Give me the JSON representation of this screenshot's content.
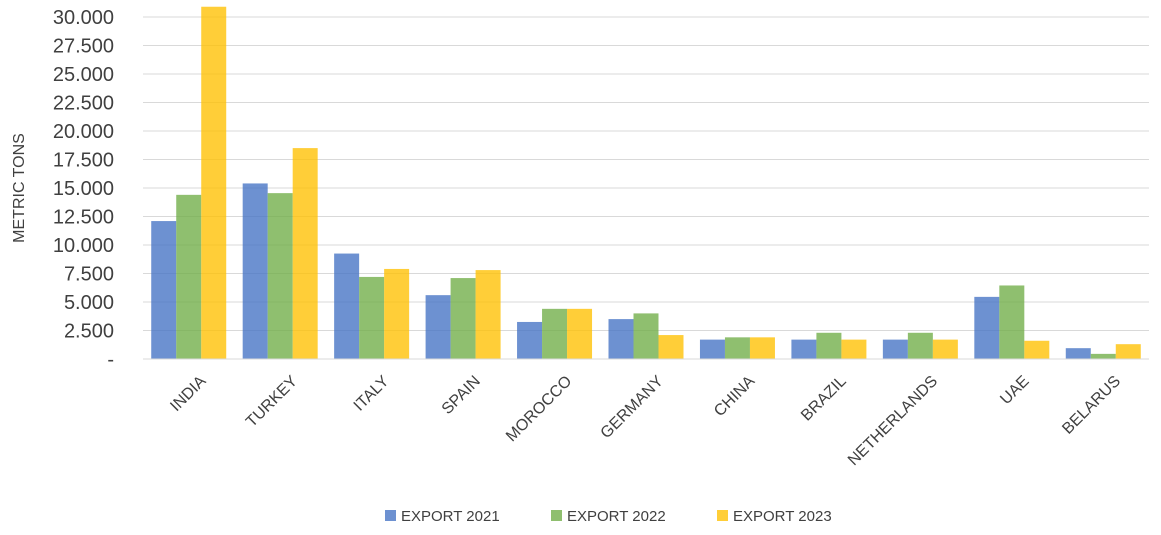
{
  "chart_data": {
    "type": "bar",
    "title": "",
    "xlabel": "",
    "ylabel": "METRIC TONS",
    "ylim": [
      0,
      30000
    ],
    "yticks": [
      0,
      2500,
      5000,
      7500,
      10000,
      12500,
      15000,
      17500,
      20000,
      22500,
      25000,
      27500,
      30000
    ],
    "ytick_labels": [
      "-",
      "2.500",
      "5.000",
      "7.500",
      "10.000",
      "12.500",
      "15.000",
      "17.500",
      "20.000",
      "22.500",
      "25.000",
      "27.500",
      "30.000"
    ],
    "grid": true,
    "legend_position": "bottom",
    "categories": [
      "INDIA",
      "TURKEY",
      "ITALY",
      "SPAIN",
      "MOROCCO",
      "GERMANY",
      "CHINA",
      "BRAZIL",
      "NETHERLANDS",
      "UAE",
      "BELARUS"
    ],
    "series": [
      {
        "name": "EXPORT 2021",
        "color": "#4472C4",
        "values": [
          12100,
          15400,
          9250,
          5600,
          3250,
          3500,
          1700,
          1700,
          1700,
          5450,
          950
        ]
      },
      {
        "name": "EXPORT 2022",
        "color": "#70AD47",
        "values": [
          14400,
          14550,
          7200,
          7100,
          4400,
          4000,
          1900,
          2300,
          2300,
          6450,
          450
        ]
      },
      {
        "name": "EXPORT 2023",
        "color": "#FFC000",
        "values": [
          30900,
          18500,
          7900,
          7800,
          4400,
          2100,
          1900,
          1700,
          1700,
          1600,
          1300
        ]
      }
    ]
  }
}
